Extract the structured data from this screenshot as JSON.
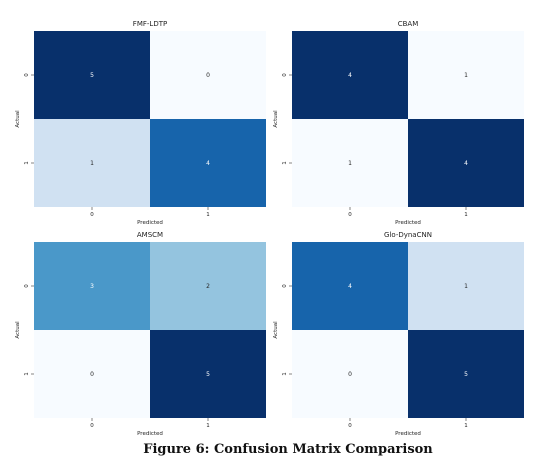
{
  "caption": "Figure 6: Confusion Matrix Comparison",
  "colors": {
    "cmap": "Blues",
    "low": "#f7fbff",
    "high": "#08306b",
    "light_text": "#ffffff",
    "dark_text": "#262626"
  },
  "chart_data": [
    {
      "type": "heatmap",
      "title": "FMF-LDTP",
      "xlabel": "Predicted",
      "ylabel": "Actual",
      "x_ticks": [
        "0",
        "1"
      ],
      "y_ticks": [
        "0",
        "1"
      ],
      "values": [
        [
          5,
          0
        ],
        [
          1,
          4
        ]
      ],
      "color_range": [
        0,
        5
      ]
    },
    {
      "type": "heatmap",
      "title": "CBAM",
      "xlabel": "Predicted",
      "ylabel": "Actual",
      "x_ticks": [
        "0",
        "1"
      ],
      "y_ticks": [
        "0",
        "1"
      ],
      "values": [
        [
          4,
          1
        ],
        [
          1,
          4
        ]
      ],
      "color_range": [
        1,
        4
      ]
    },
    {
      "type": "heatmap",
      "title": "AMSCM",
      "xlabel": "Predicted",
      "ylabel": "Actual",
      "x_ticks": [
        "0",
        "1"
      ],
      "y_ticks": [
        "0",
        "1"
      ],
      "values": [
        [
          3,
          2
        ],
        [
          0,
          5
        ]
      ],
      "color_range": [
        0,
        5
      ]
    },
    {
      "type": "heatmap",
      "title": "Glo-DynaCNN",
      "xlabel": "Predicted",
      "ylabel": "Actual",
      "x_ticks": [
        "0",
        "1"
      ],
      "y_ticks": [
        "0",
        "1"
      ],
      "values": [
        [
          4,
          1
        ],
        [
          0,
          5
        ]
      ],
      "color_range": [
        0,
        5
      ]
    }
  ]
}
